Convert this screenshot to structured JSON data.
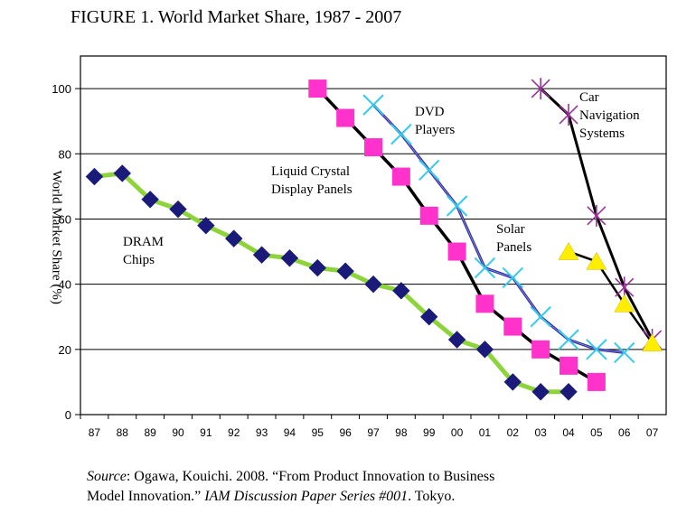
{
  "title": "FIGURE 1. World Market Share, 1987 - 2007",
  "chart_data": {
    "type": "line",
    "title": "FIGURE 1. World Market Share, 1987 - 2007",
    "xlabel": "",
    "ylabel": "World Market Share (%)",
    "x": [
      "87",
      "88",
      "89",
      "90",
      "91",
      "92",
      "93",
      "94",
      "95",
      "96",
      "97",
      "98",
      "99",
      "00",
      "01",
      "02",
      "03",
      "04",
      "05",
      "06",
      "07"
    ],
    "ylim": [
      0,
      110
    ],
    "yticks": [
      0,
      20,
      40,
      60,
      80,
      100
    ],
    "grid": "horizontal",
    "legend": "none (inline labels)",
    "series": [
      {
        "name": "DRAM Chips",
        "label_lines": [
          "DRAM",
          "Chips"
        ],
        "color": "#8cd43a",
        "marker": "diamond",
        "marker_color": "#1a1a7a",
        "values": [
          73,
          74,
          66,
          63,
          58,
          54,
          49,
          48,
          45,
          44,
          40,
          38,
          30,
          23,
          20,
          10,
          7,
          7,
          null,
          null,
          null
        ]
      },
      {
        "name": "Liquid Crystal Display Panels",
        "label_lines": [
          "Liquid Crystal",
          "Display Panels"
        ],
        "color": "#000000",
        "marker": "square",
        "marker_color": "#ff33cc",
        "values": [
          null,
          null,
          null,
          null,
          null,
          null,
          null,
          null,
          100,
          91,
          82,
          73,
          61,
          50,
          34,
          27,
          20,
          15,
          10,
          null,
          null
        ]
      },
      {
        "name": "DVD Players",
        "label_lines": [
          "DVD",
          "Players"
        ],
        "color": "#2a2a9a",
        "marker": "x",
        "marker_color": "#33ccee",
        "values": [
          null,
          null,
          null,
          null,
          null,
          null,
          null,
          null,
          null,
          null,
          95,
          86,
          75,
          64,
          45,
          42,
          30,
          23,
          20,
          19,
          null
        ]
      },
      {
        "name": "Car Navigation Systems",
        "label_lines": [
          "Car",
          "Navigation",
          "Systems"
        ],
        "color": "#000000",
        "marker": "star",
        "marker_color": "#993399",
        "values": [
          null,
          null,
          null,
          null,
          null,
          null,
          null,
          null,
          null,
          null,
          null,
          null,
          null,
          null,
          null,
          null,
          100,
          92,
          61,
          39,
          23
        ]
      },
      {
        "name": "Solar Panels",
        "label_lines": [
          "Solar",
          "Panels"
        ],
        "color": "#000000",
        "marker": "triangle",
        "marker_color": "#ffee00",
        "values": [
          null,
          null,
          null,
          null,
          null,
          null,
          null,
          null,
          null,
          null,
          null,
          null,
          null,
          null,
          null,
          null,
          null,
          50,
          47,
          34,
          22
        ]
      }
    ]
  },
  "source": {
    "label": "Source",
    "text_1": ": Ogawa, Kouichi. 2008. “From Product Innovation to Business",
    "text_2": "Model Innovation.” ",
    "series_title": "IAM Discussion Paper Series #001",
    "text_3": ". Tokyo."
  }
}
